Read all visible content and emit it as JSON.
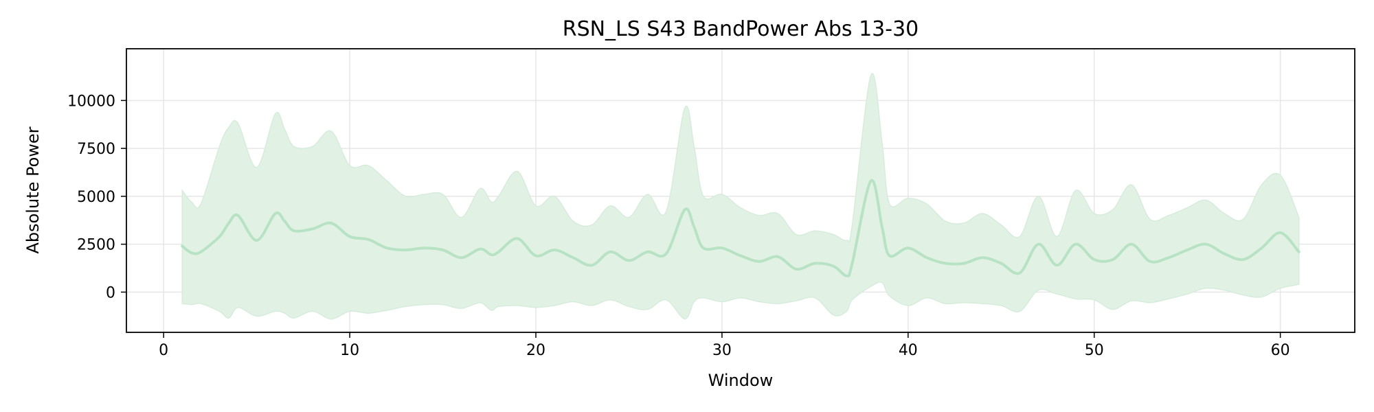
{
  "chart_data": {
    "type": "area",
    "title": "RSN_LS S43 BandPower Abs 13-30",
    "xlabel": "Window",
    "ylabel": "Absolute Power",
    "xlim": [
      -2,
      64
    ],
    "ylim": [
      -2100,
      12700
    ],
    "xticks": [
      0,
      10,
      20,
      30,
      40,
      50,
      60
    ],
    "yticks": [
      0,
      2500,
      5000,
      7500,
      10000
    ],
    "xtick_labels": [
      "0",
      "10",
      "20",
      "30",
      "40",
      "50",
      "60"
    ],
    "ytick_labels": [
      "0",
      "2500",
      "5000",
      "7500",
      "10000"
    ],
    "grid": true,
    "colors": {
      "line": "#b8e2c4",
      "band": "#e1f2e5"
    },
    "series": [
      {
        "x": [
          1,
          1.5,
          2,
          3,
          3.5,
          4,
          5,
          6,
          6.5,
          7,
          8,
          9,
          10,
          11,
          12,
          13,
          14,
          15,
          16,
          17,
          17.6,
          18,
          19,
          20,
          21,
          22,
          23,
          24,
          25,
          26,
          27,
          28,
          28.5,
          29,
          30,
          31,
          32,
          33,
          34,
          35,
          36,
          36.7,
          37,
          38,
          38.6,
          39,
          40,
          41,
          42,
          43,
          44,
          45,
          46,
          47,
          48,
          49,
          50,
          51,
          52,
          53,
          54,
          55,
          56,
          57,
          58,
          59,
          60,
          61
        ],
        "mean": [
          2400,
          2050,
          2100,
          2900,
          3600,
          4000,
          2700,
          4100,
          3700,
          3200,
          3300,
          3600,
          2900,
          2750,
          2300,
          2200,
          2300,
          2200,
          1800,
          2250,
          1950,
          2100,
          2800,
          1900,
          2200,
          1800,
          1400,
          2100,
          1650,
          2100,
          2000,
          4300,
          3400,
          2300,
          2300,
          1900,
          1600,
          1850,
          1200,
          1500,
          1350,
          850,
          1500,
          5800,
          3400,
          1900,
          2300,
          1800,
          1500,
          1500,
          1800,
          1500,
          1000,
          2500,
          1400,
          2500,
          1700,
          1700,
          2500,
          1600,
          1800,
          2200,
          2500,
          2000,
          1700,
          2300,
          3100,
          2100
        ],
        "upper": [
          5300,
          4700,
          4600,
          7600,
          8600,
          8800,
          6500,
          9300,
          8500,
          7600,
          7600,
          8400,
          6600,
          6600,
          5800,
          5000,
          5100,
          5100,
          3900,
          5400,
          4700,
          5000,
          6300,
          4500,
          5000,
          3700,
          3500,
          4500,
          3900,
          5100,
          4200,
          9600,
          7600,
          5000,
          5100,
          4400,
          4000,
          4100,
          3000,
          3200,
          3000,
          2700,
          3500,
          11300,
          7800,
          4600,
          4900,
          4600,
          3700,
          3600,
          4100,
          3500,
          2900,
          5000,
          2900,
          5300,
          4100,
          4300,
          5600,
          3800,
          4000,
          4400,
          4800,
          4100,
          3800,
          5600,
          6100,
          3900
        ],
        "lower": [
          -600,
          -650,
          -600,
          -1000,
          -1350,
          -800,
          -1250,
          -1000,
          -1100,
          -1350,
          -1000,
          -1400,
          -1000,
          -1100,
          -950,
          -750,
          -650,
          -650,
          -850,
          -550,
          -950,
          -750,
          -700,
          -800,
          -700,
          -500,
          -700,
          -400,
          -750,
          -900,
          -400,
          -1400,
          -500,
          -300,
          -500,
          -300,
          -500,
          -600,
          -450,
          -300,
          -1200,
          -1000,
          -400,
          300,
          500,
          -200,
          -700,
          -300,
          -600,
          -550,
          -600,
          -700,
          -1000,
          100,
          -100,
          -350,
          -400,
          -900,
          -450,
          -550,
          -350,
          -100,
          200,
          100,
          -150,
          -250,
          200,
          400
        ]
      }
    ]
  }
}
